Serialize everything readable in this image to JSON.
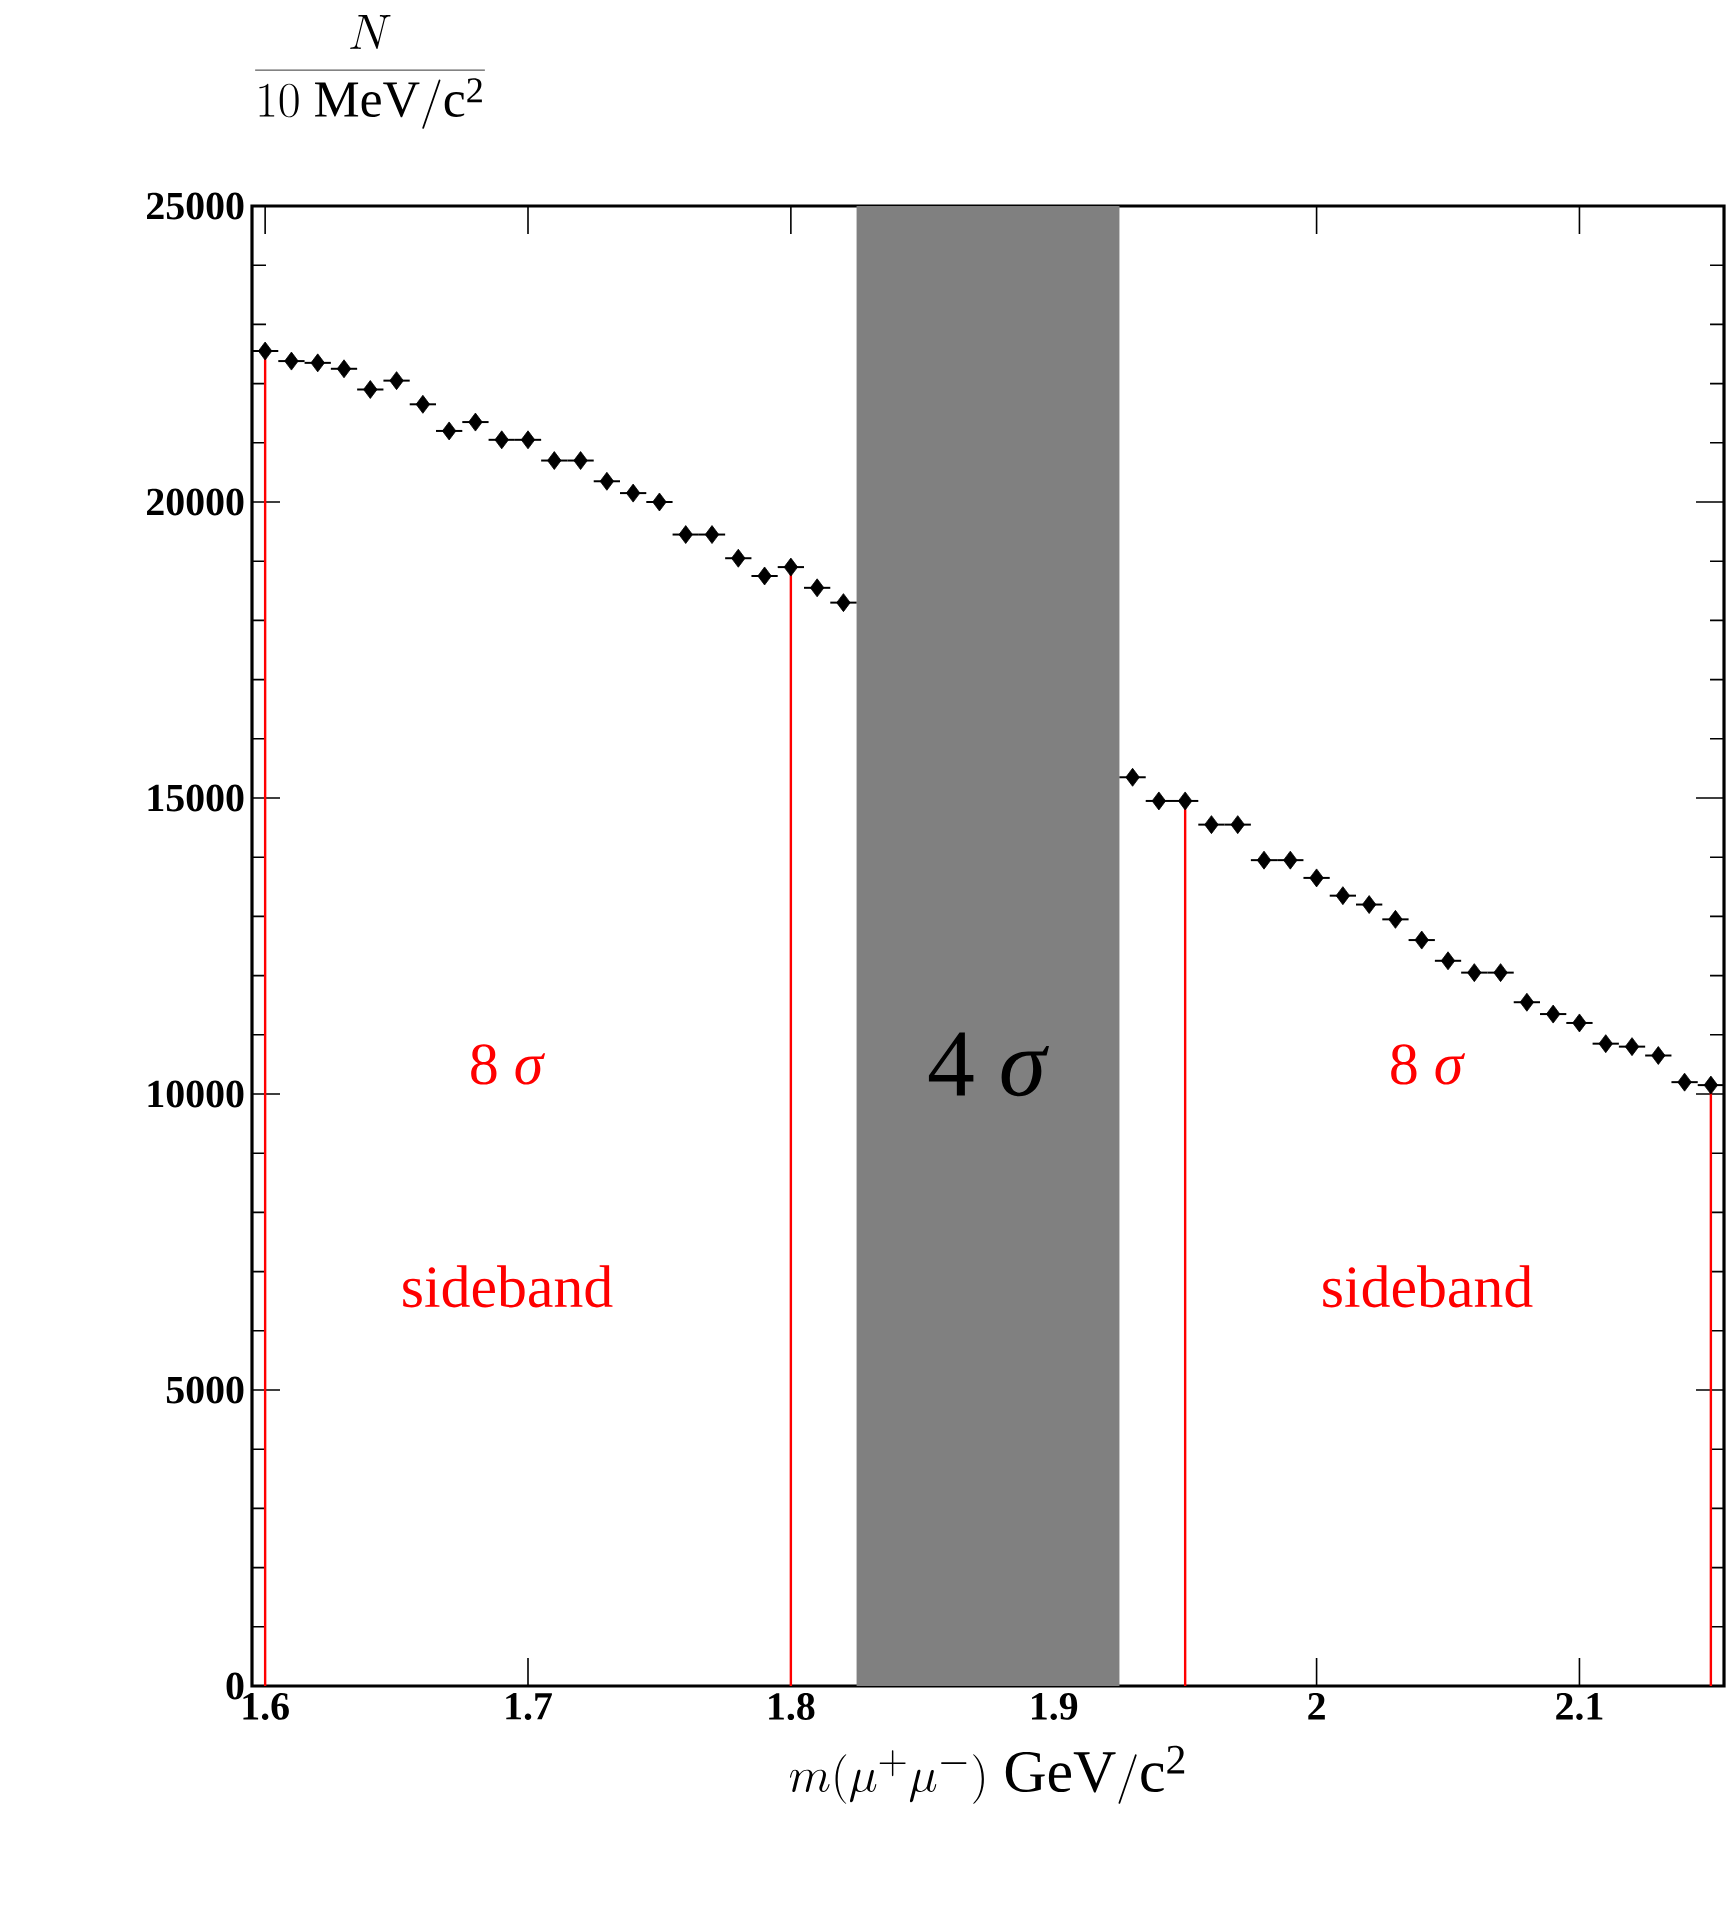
{
  "chart_data": {
    "type": "scatter",
    "xlabel": "m(\\mu^{+}\\mu^{-})\\ \\mathrm{GeV/c^{2}}",
    "ylabel": "\\frac{N}{10\\ \\mathrm{MeV/c^{2}}}",
    "series": [
      {
        "color": "#000000",
        "x": [
          1.6,
          1.61,
          1.62,
          1.63,
          1.64,
          1.65,
          1.66,
          1.67,
          1.68,
          1.69,
          1.7,
          1.71,
          1.72,
          1.73,
          1.74,
          1.75,
          1.76,
          1.77,
          1.78,
          1.79,
          1.8,
          1.81,
          1.82,
          1.93,
          1.94,
          1.95,
          1.96,
          1.97,
          1.98,
          1.99,
          2.0,
          2.01,
          2.02,
          2.03,
          2.04,
          2.05,
          2.06,
          2.07,
          2.08,
          2.09,
          2.1,
          2.11,
          2.12,
          2.13,
          2.14,
          2.15
        ],
        "values": [
          22550,
          22380,
          22350,
          22250,
          21900,
          22050,
          21650,
          21200,
          21350,
          21050,
          21050,
          20700,
          20700,
          20350,
          20150,
          20000,
          19450,
          19450,
          19050,
          18750,
          18900,
          18550,
          18300,
          15350,
          14950,
          14950,
          14550,
          14550,
          13950,
          13950,
          13650,
          13350,
          13200,
          12950,
          12600,
          12250,
          12050,
          12050,
          11550,
          11350,
          11200,
          10850,
          10800,
          10650,
          10200,
          10150
        ],
        "xerrors": [
          0.005,
          0.005,
          0.005,
          0.005,
          0.005,
          0.005,
          0.005,
          0.005,
          0.005,
          0.005,
          0.005,
          0.005,
          0.005,
          0.005,
          0.005,
          0.005,
          0.005,
          0.005,
          0.005,
          0.005,
          0.005,
          0.005,
          0.005,
          0.005,
          0.005,
          0.005,
          0.005,
          0.005,
          0.005,
          0.005,
          0.005,
          0.005,
          0.005,
          0.005,
          0.005,
          0.005,
          0.005,
          0.005,
          0.005,
          0.005,
          0.005,
          0.005,
          0.005,
          0.005,
          0.005,
          0.005
        ]
      }
    ],
    "marker": "diamond",
    "xlim": [
      1.595,
      2.155
    ],
    "ylim": [
      0,
      25000
    ],
    "xticks": [
      {
        "value": 1.6,
        "label": "1.6"
      },
      {
        "value": 1.7,
        "label": "1.7"
      },
      {
        "value": 1.8,
        "label": "1.8"
      },
      {
        "value": 1.9,
        "label": "1.9"
      },
      {
        "value": 2.0,
        "label": "2"
      },
      {
        "value": 2.1,
        "label": "2.1"
      }
    ],
    "yticks": [
      0,
      5000,
      10000,
      15000,
      20000,
      25000
    ],
    "bands": [
      {
        "axis": "x",
        "from": 1.825,
        "to": 1.925,
        "label": "4 *σ*",
        "color": "#808080"
      }
    ],
    "ref_lines": [
      {
        "axis": "x",
        "value": 1.6,
        "color": "#ff0000"
      },
      {
        "axis": "x",
        "value": 1.8,
        "color": "#ff0000"
      },
      {
        "axis": "x",
        "value": 1.95,
        "color": "#ff0000"
      },
      {
        "axis": "x",
        "value": 2.15,
        "color": "#ff0000"
      }
    ],
    "annotations": [
      "8 *σ*",
      "sideband",
      "8 *σ*",
      "sideband"
    ],
    "grid": false
  }
}
